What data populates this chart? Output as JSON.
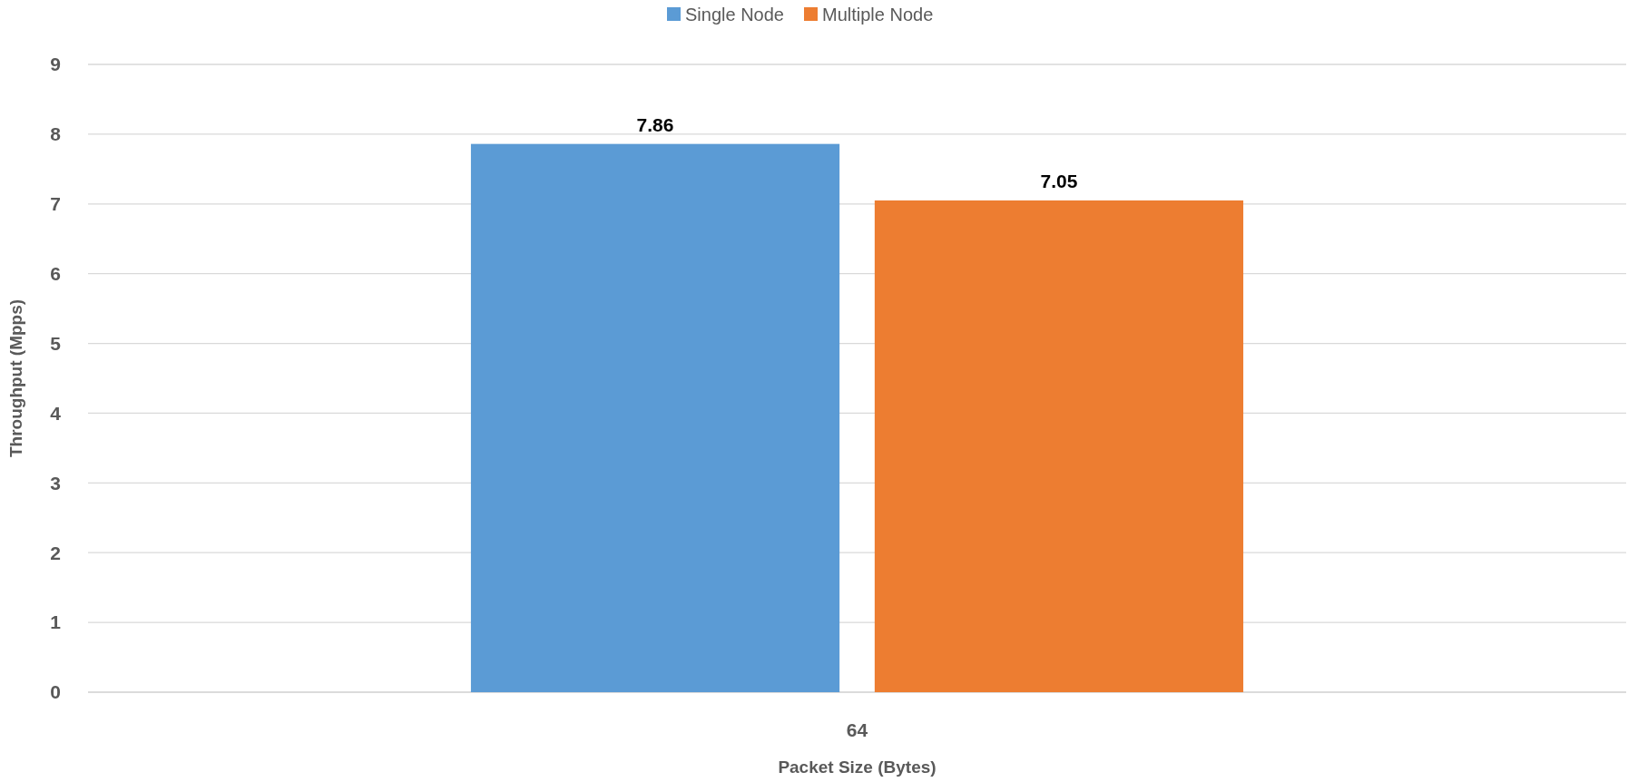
{
  "chart_data": {
    "type": "bar",
    "xlabel": "Packet Size (Bytes)",
    "ylabel": "Throughput (Mpps)",
    "categories": [
      "64"
    ],
    "series": [
      {
        "name": "Single Node",
        "color": "#5b9bd5",
        "values": [
          7.86
        ]
      },
      {
        "name": "Multiple Node",
        "color": "#ed7d31",
        "values": [
          7.05
        ]
      }
    ],
    "ylim": [
      0,
      9
    ],
    "yticks": [
      0,
      1,
      2,
      3,
      4,
      5,
      6,
      7,
      8,
      9
    ],
    "grid": "y",
    "legend": "top",
    "data_labels": true
  }
}
